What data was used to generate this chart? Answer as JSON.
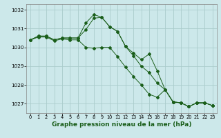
{
  "bg_color": "#cce8ea",
  "grid_color": "#aacccc",
  "line_color": "#1a5e1a",
  "title": "Graphe pression niveau de la mer (hPa)",
  "title_fontsize": 6.5,
  "ylim": [
    1026.5,
    1032.3
  ],
  "xlim": [
    -0.5,
    23.5
  ],
  "yticks": [
    1027,
    1028,
    1029,
    1030,
    1031,
    1032
  ],
  "xticks": [
    0,
    1,
    2,
    3,
    4,
    5,
    6,
    7,
    8,
    9,
    10,
    11,
    12,
    13,
    14,
    15,
    16,
    17,
    18,
    19,
    20,
    21,
    22,
    23
  ],
  "series1": [
    1030.4,
    1030.6,
    1030.6,
    1030.4,
    1030.5,
    1030.5,
    1030.5,
    1031.3,
    1031.75,
    1031.6,
    1031.1,
    1030.85,
    1030.05,
    1029.7,
    1029.35,
    1029.65,
    1028.75,
    1027.75,
    1027.1,
    1027.05,
    1026.85,
    1027.05,
    1027.05,
    1026.9
  ],
  "series2": [
    1030.4,
    1030.6,
    1030.6,
    1030.4,
    1030.5,
    1030.5,
    1030.5,
    1030.95,
    1031.55,
    1031.6,
    1031.1,
    1030.85,
    1030.05,
    1029.55,
    1029.0,
    1028.65,
    1028.1,
    1027.75,
    1027.1,
    1027.05,
    1026.85,
    1027.05,
    1027.05,
    1026.9
  ],
  "series3": [
    1030.4,
    1030.55,
    1030.55,
    1030.35,
    1030.45,
    1030.4,
    1030.4,
    1030.0,
    1029.95,
    1030.0,
    1030.0,
    1029.5,
    1028.95,
    1028.45,
    1028.0,
    1027.5,
    1027.35,
    1027.75,
    1027.1,
    1027.05,
    1026.85,
    1027.05,
    1027.05,
    1026.9
  ]
}
